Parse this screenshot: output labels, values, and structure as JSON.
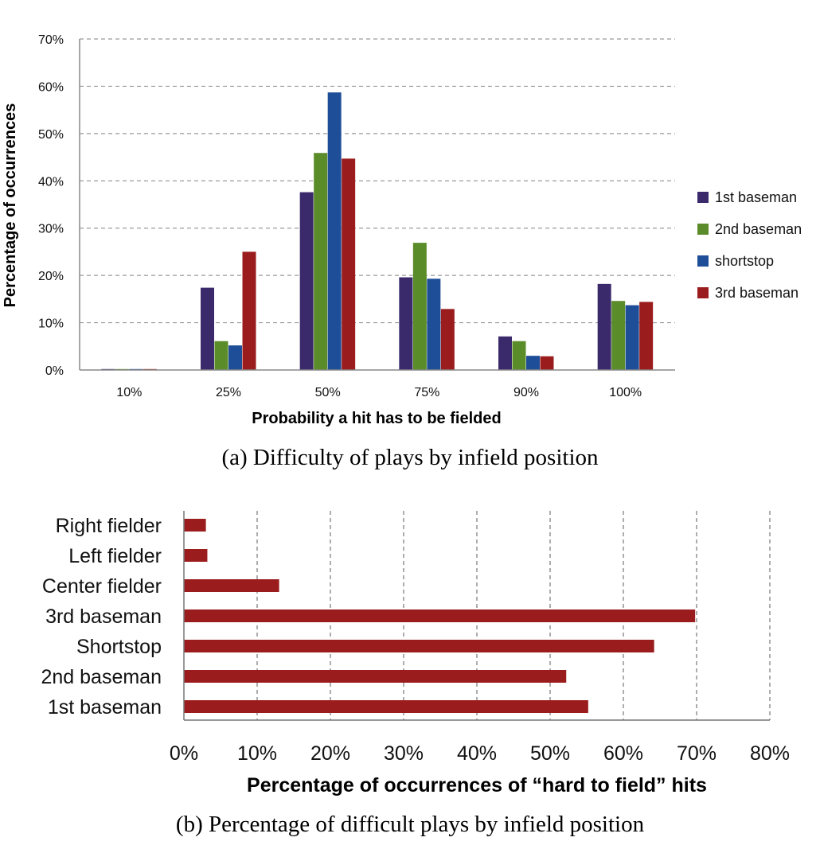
{
  "chart_data": [
    {
      "type": "bar",
      "orientation": "vertical",
      "caption": "(a) Difficulty of plays by infield position",
      "xlabel": "Probability a hit has to be fielded",
      "ylabel": "Percentage of occurrences",
      "categories": [
        "10%",
        "25%",
        "50%",
        "75%",
        "90%",
        "100%"
      ],
      "ylim": [
        0,
        70
      ],
      "yticks": [
        "0%",
        "10%",
        "20%",
        "30%",
        "40%",
        "50%",
        "60%",
        "70%"
      ],
      "grid": true,
      "legend_position": "right",
      "series": [
        {
          "name": "1st baseman",
          "color": "#3b2a6b",
          "values": [
            0.2,
            17.4,
            37.6,
            19.6,
            7.1,
            18.2
          ]
        },
        {
          "name": "2nd baseman",
          "color": "#5b8c2a",
          "values": [
            0.2,
            6.1,
            45.9,
            26.9,
            6.1,
            14.6
          ]
        },
        {
          "name": "shortstop",
          "color": "#1f4e99",
          "values": [
            0.2,
            5.2,
            58.7,
            19.3,
            3.0,
            13.7
          ]
        },
        {
          "name": "3rd baseman",
          "color": "#9b1c1c",
          "values": [
            0.2,
            25.0,
            44.7,
            12.9,
            2.9,
            14.4
          ]
        }
      ]
    },
    {
      "type": "bar",
      "orientation": "horizontal",
      "caption": "(b) Percentage of difficult plays by infield position",
      "xlabel": "Percentage of occurrences of “hard to field” hits",
      "categories": [
        "Right fielder",
        "Left fielder",
        "Center fielder",
        "3rd baseman",
        "Shortstop",
        "2nd baseman",
        "1st baseman"
      ],
      "values": [
        3.0,
        3.2,
        13.0,
        69.8,
        64.2,
        52.2,
        55.2
      ],
      "color": "#9b1c1c",
      "xlim": [
        0,
        80
      ],
      "xticks": [
        "0%",
        "10%",
        "20%",
        "30%",
        "40%",
        "50%",
        "60%",
        "70%",
        "80%"
      ],
      "grid": true
    }
  ]
}
